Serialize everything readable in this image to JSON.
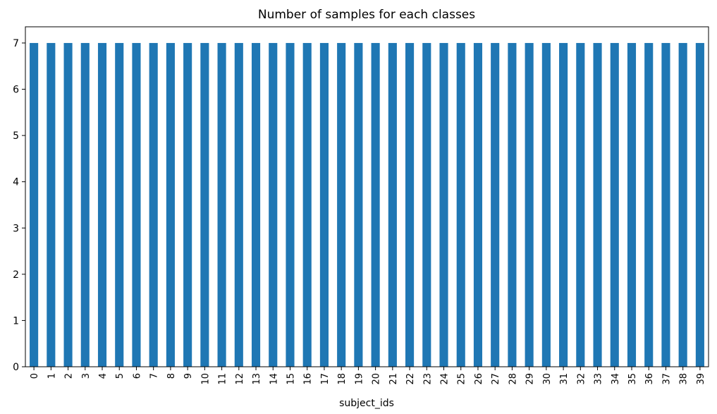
{
  "chart_data": {
    "type": "bar",
    "title": "Number of samples for each classes",
    "xlabel": "subject_ids",
    "ylabel": "",
    "categories": [
      "0",
      "1",
      "2",
      "3",
      "4",
      "5",
      "6",
      "7",
      "8",
      "9",
      "10",
      "11",
      "12",
      "13",
      "14",
      "15",
      "16",
      "17",
      "18",
      "19",
      "20",
      "21",
      "22",
      "23",
      "24",
      "25",
      "26",
      "27",
      "28",
      "29",
      "30",
      "31",
      "32",
      "33",
      "34",
      "35",
      "36",
      "37",
      "38",
      "39"
    ],
    "values": [
      7,
      7,
      7,
      7,
      7,
      7,
      7,
      7,
      7,
      7,
      7,
      7,
      7,
      7,
      7,
      7,
      7,
      7,
      7,
      7,
      7,
      7,
      7,
      7,
      7,
      7,
      7,
      7,
      7,
      7,
      7,
      7,
      7,
      7,
      7,
      7,
      7,
      7,
      7,
      7
    ],
    "ylim": [
      0,
      7.35
    ],
    "yticks": [
      0,
      1,
      2,
      3,
      4,
      5,
      6,
      7
    ],
    "bar_color": "#1f77b4",
    "grid": false,
    "legend": "none"
  }
}
